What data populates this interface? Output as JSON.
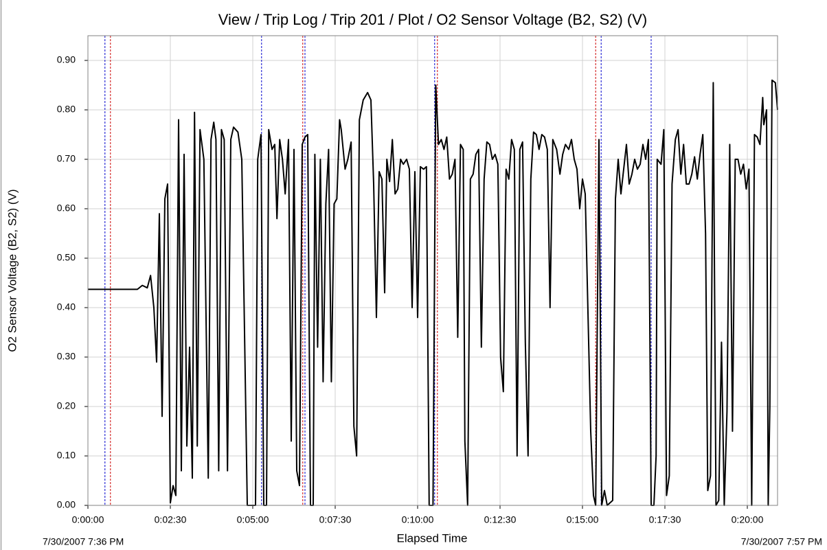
{
  "chart_data": {
    "type": "line",
    "title": "View / Trip Log / Trip 201 / Plot / O2 Sensor Voltage (B2, S2) (V)",
    "x_label": "Elapsed Time",
    "y_label": "O2 Sensor Voltage (B2, S2) (V)",
    "start_label": "7/30/2007 7:36 PM",
    "end_label": "7/30/2007 7:57 PM",
    "start_label_color": "#808080",
    "end_label_color": "#cc0000",
    "grid": true,
    "xlim": [
      0,
      1255
    ],
    "xticks": [
      {
        "value": 0,
        "label": "0:00:00"
      },
      {
        "value": 150,
        "label": "0:02:30"
      },
      {
        "value": 300,
        "label": "0:05:00"
      },
      {
        "value": 450,
        "label": "0:07:30"
      },
      {
        "value": 600,
        "label": "0:10:00"
      },
      {
        "value": 750,
        "label": "0:12:30"
      },
      {
        "value": 900,
        "label": "0:15:00"
      },
      {
        "value": 1050,
        "label": "0:17:30"
      },
      {
        "value": 1200,
        "label": "0:20:00"
      }
    ],
    "ylim": [
      0,
      0.95
    ],
    "yticks": [
      {
        "value": 0,
        "label": "0.00"
      },
      {
        "value": 0.1,
        "label": "0.10"
      },
      {
        "value": 0.2,
        "label": "0.20"
      },
      {
        "value": 0.3,
        "label": "0.30"
      },
      {
        "value": 0.4,
        "label": "0.40"
      },
      {
        "value": 0.5,
        "label": "0.50"
      },
      {
        "value": 0.6,
        "label": "0.60"
      },
      {
        "value": 0.7,
        "label": "0.70"
      },
      {
        "value": 0.8,
        "label": "0.80"
      },
      {
        "value": 0.9,
        "label": "0.90"
      }
    ],
    "event_lines": [
      {
        "x": 31,
        "color": "#0000cc"
      },
      {
        "x": 41,
        "color": "#cc0000"
      },
      {
        "x": 316,
        "color": "#0000cc"
      },
      {
        "x": 391,
        "color": "#cc0000"
      },
      {
        "x": 395,
        "color": "#0000cc"
      },
      {
        "x": 631,
        "color": "#0000cc"
      },
      {
        "x": 636,
        "color": "#cc0000"
      },
      {
        "x": 924,
        "color": "#cc0000"
      },
      {
        "x": 934,
        "color": "#0000cc"
      },
      {
        "x": 1025,
        "color": "#0000cc"
      }
    ],
    "x": [
      0,
      90,
      99,
      108,
      114,
      120,
      125,
      130,
      135,
      140,
      145,
      150,
      155,
      160,
      165,
      170,
      175,
      180,
      185,
      190,
      194,
      199,
      204,
      211,
      219,
      224,
      229,
      233,
      238,
      243,
      248,
      254,
      260,
      265,
      273,
      280,
      290,
      305,
      309,
      315,
      320,
      325,
      329,
      335,
      340,
      344,
      349,
      354,
      359,
      365,
      370,
      375,
      380,
      385,
      390,
      395,
      400,
      405,
      410,
      413,
      418,
      423,
      428,
      433,
      438,
      443,
      448,
      453,
      458,
      461,
      468,
      473,
      479,
      484,
      489,
      494,
      501,
      509,
      515,
      520,
      525,
      530,
      535,
      540,
      544,
      549,
      554,
      559,
      564,
      569,
      574,
      580,
      585,
      590,
      595,
      600,
      605,
      611,
      616,
      621,
      628,
      633,
      638,
      643,
      648,
      653,
      658,
      663,
      668,
      673,
      678,
      683,
      686,
      691,
      696,
      701,
      706,
      711,
      716,
      721,
      726,
      731,
      736,
      741,
      746,
      751,
      756,
      761,
      766,
      771,
      776,
      781,
      786,
      791,
      796,
      801,
      806,
      811,
      816,
      821,
      826,
      831,
      836,
      841,
      846,
      853,
      859,
      864,
      869,
      875,
      880,
      885,
      890,
      895,
      900,
      905,
      910,
      915,
      920,
      924,
      930,
      935,
      940,
      945,
      950,
      955,
      960,
      965,
      970,
      975,
      980,
      985,
      990,
      995,
      1000,
      1005,
      1010,
      1015,
      1020,
      1025,
      1030,
      1034,
      1036,
      1043,
      1048,
      1053,
      1058,
      1063,
      1069,
      1074,
      1079,
      1084,
      1089,
      1094,
      1099,
      1104,
      1109,
      1114,
      1119,
      1124,
      1128,
      1133,
      1138,
      1143,
      1148,
      1153,
      1158,
      1163,
      1168,
      1173,
      1178,
      1183,
      1188,
      1193,
      1198,
      1203,
      1208,
      1213,
      1218,
      1223,
      1228,
      1230,
      1235,
      1238,
      1241,
      1245,
      1251,
      1255
    ],
    "series": [
      {
        "color": "#000000",
        "values": [
          0.437,
          0.437,
          0.445,
          0.44,
          0.465,
          0.4,
          0.29,
          0.59,
          0.18,
          0.62,
          0.65,
          0.005,
          0.04,
          0.02,
          0.78,
          0.07,
          0.71,
          0.12,
          0.32,
          0.055,
          0.795,
          0.12,
          0.76,
          0.7,
          0.055,
          0.74,
          0.775,
          0.74,
          0.07,
          0.76,
          0.74,
          0.07,
          0.74,
          0.765,
          0.755,
          0.7,
          0.0,
          0.0,
          0.7,
          0.75,
          0.0,
          0.0,
          0.76,
          0.72,
          0.73,
          0.58,
          0.74,
          0.7,
          0.63,
          0.74,
          0.13,
          0.72,
          0.07,
          0.04,
          0.73,
          0.745,
          0.75,
          0.0,
          0.0,
          0.71,
          0.32,
          0.7,
          0.25,
          0.61,
          0.72,
          0.25,
          0.61,
          0.62,
          0.78,
          0.76,
          0.68,
          0.7,
          0.735,
          0.16,
          0.1,
          0.78,
          0.82,
          0.835,
          0.82,
          0.65,
          0.38,
          0.675,
          0.66,
          0.43,
          0.7,
          0.655,
          0.74,
          0.63,
          0.64,
          0.7,
          0.69,
          0.7,
          0.68,
          0.4,
          0.675,
          0.38,
          0.685,
          0.68,
          0.685,
          0.0,
          0.0,
          0.85,
          0.73,
          0.74,
          0.72,
          0.745,
          0.66,
          0.67,
          0.7,
          0.34,
          0.73,
          0.72,
          0.13,
          0.0,
          0.66,
          0.67,
          0.71,
          0.72,
          0.32,
          0.66,
          0.735,
          0.73,
          0.7,
          0.71,
          0.69,
          0.3,
          0.23,
          0.68,
          0.66,
          0.74,
          0.72,
          0.1,
          0.72,
          0.735,
          0.33,
          0.1,
          0.66,
          0.755,
          0.75,
          0.72,
          0.75,
          0.745,
          0.72,
          0.4,
          0.74,
          0.72,
          0.67,
          0.71,
          0.73,
          0.72,
          0.74,
          0.7,
          0.68,
          0.6,
          0.66,
          0.63,
          0.39,
          0.15,
          0.02,
          0.0,
          0.74,
          0.0,
          0.03,
          0.0,
          0.005,
          0.01,
          0.62,
          0.7,
          0.63,
          0.68,
          0.73,
          0.65,
          0.67,
          0.7,
          0.68,
          0.69,
          0.73,
          0.7,
          0.74,
          0.0,
          0.0,
          0.1,
          0.7,
          0.69,
          0.76,
          0.02,
          0.06,
          0.65,
          0.74,
          0.76,
          0.67,
          0.73,
          0.65,
          0.65,
          0.67,
          0.705,
          0.66,
          0.71,
          0.75,
          0.55,
          0.03,
          0.06,
          0.855,
          0.0,
          0.01,
          0.33,
          0.0,
          0.19,
          0.73,
          0.15,
          0.7,
          0.7,
          0.67,
          0.69,
          0.64,
          0.68,
          0.0,
          0.75,
          0.745,
          0.73,
          0.825,
          0.77,
          0.8,
          0.0,
          0.2,
          0.86,
          0.855,
          0.8
        ]
      }
    ]
  }
}
